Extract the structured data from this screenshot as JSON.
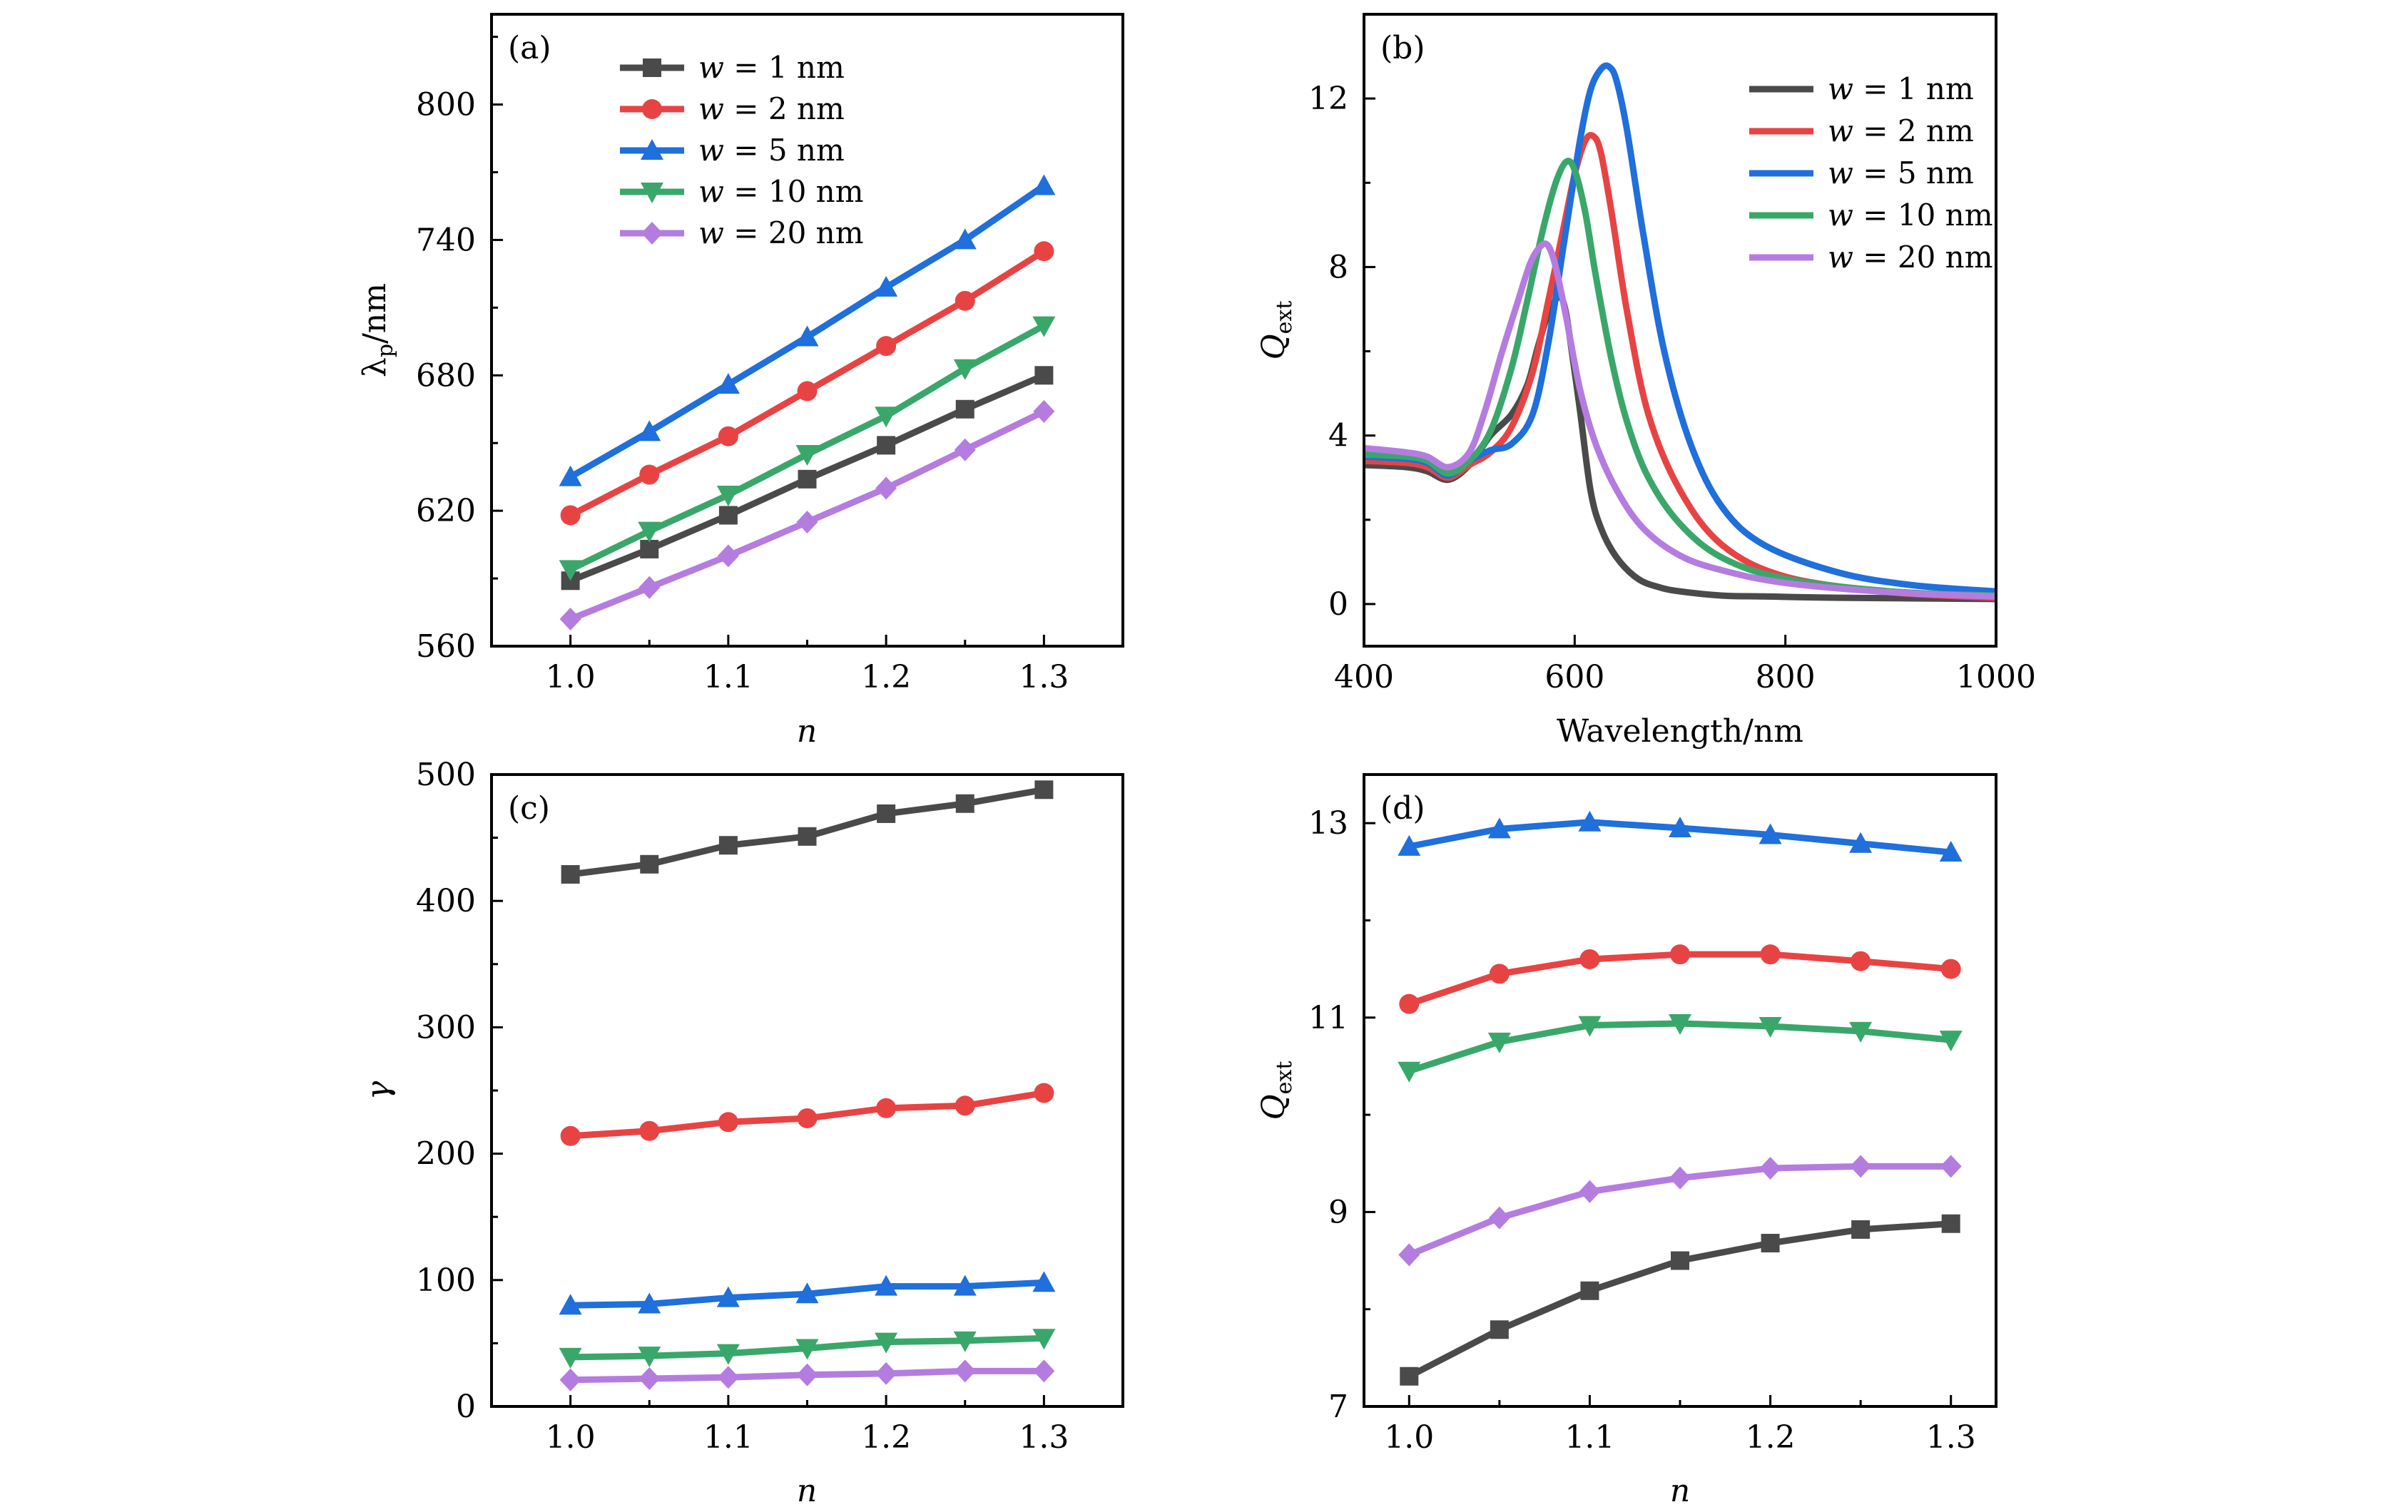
{
  "figure": {
    "series_colors": {
      "w1": "#4a4a4a",
      "w2": "#e84343",
      "w5": "#1f6fdc",
      "w10": "#3aa76a",
      "w20": "#b57ce0"
    }
  },
  "chart_data": [
    {
      "id": "a",
      "type": "line",
      "panel_label": "(a)",
      "xlabel": "n",
      "ylabel": "λp/nm",
      "xlim": [
        0.95,
        1.35
      ],
      "ylim": [
        560,
        840
      ],
      "xticks": [
        1.0,
        1.1,
        1.2,
        1.3
      ],
      "xtick_labels": [
        "1.0",
        "1.1",
        "1.2",
        "1.3"
      ],
      "xminor": [
        1.05,
        1.15,
        1.25
      ],
      "yticks": [
        560,
        620,
        680,
        740,
        800
      ],
      "ytick_labels": [
        "560",
        "620",
        "680",
        "740",
        "800"
      ],
      "yminor": [
        590,
        650,
        710,
        770,
        830
      ],
      "legend": "top-left",
      "markers": true,
      "x": [
        1.0,
        1.05,
        1.1,
        1.15,
        1.2,
        1.25,
        1.3
      ],
      "series": [
        {
          "key": "w1",
          "name": "w = 1 nm",
          "marker": "square",
          "values": [
            589,
            603,
            618,
            634,
            649,
            665,
            680
          ]
        },
        {
          "key": "w2",
          "name": "w = 2 nm",
          "marker": "circle",
          "values": [
            618,
            636,
            653,
            673,
            693,
            713,
            735
          ]
        },
        {
          "key": "w5",
          "name": "w = 5 nm",
          "marker": "triangle-up",
          "values": [
            635,
            655,
            676,
            697,
            719,
            740,
            764
          ]
        },
        {
          "key": "w10",
          "name": "w = 10 nm",
          "marker": "triangle-down",
          "values": [
            594,
            611,
            627,
            645,
            662,
            683,
            702
          ]
        },
        {
          "key": "w20",
          "name": "w = 20 nm",
          "marker": "diamond",
          "values": [
            572,
            586,
            600,
            615,
            630,
            647,
            664
          ]
        }
      ]
    },
    {
      "id": "b",
      "type": "line",
      "panel_label": "(b)",
      "xlabel": "Wavelength/nm",
      "ylabel": "Qext",
      "xlim": [
        400,
        1000
      ],
      "ylim": [
        -1,
        14
      ],
      "xticks": [
        400,
        600,
        800,
        1000
      ],
      "xtick_labels": [
        "400",
        "600",
        "800",
        "1000"
      ],
      "xminor": [],
      "yticks": [
        0,
        4,
        8,
        12
      ],
      "ytick_labels": [
        "0",
        "4",
        "8",
        "12"
      ],
      "yminor": [
        2,
        6,
        10
      ],
      "legend": "top-right",
      "markers": false,
      "series": [
        {
          "key": "w1",
          "name": "w = 1 nm",
          "x": [
            400,
            440,
            460,
            480,
            500,
            520,
            540,
            555,
            565,
            575,
            585,
            590,
            595,
            605,
            615,
            625,
            640,
            660,
            680,
            700,
            740,
            780,
            850,
            1000
          ],
          "values": [
            3.3,
            3.25,
            3.15,
            2.95,
            3.3,
            4.0,
            4.5,
            5.2,
            6.1,
            6.9,
            7.3,
            7.1,
            6.4,
            4.6,
            2.7,
            1.8,
            1.1,
            0.6,
            0.4,
            0.3,
            0.2,
            0.18,
            0.15,
            0.12
          ]
        },
        {
          "key": "w2",
          "name": "w = 2 nm",
          "x": [
            400,
            440,
            460,
            480,
            500,
            520,
            540,
            560,
            575,
            590,
            600,
            610,
            618,
            625,
            635,
            650,
            670,
            700,
            740,
            800,
            900,
            1000
          ],
          "values": [
            3.4,
            3.35,
            3.25,
            3.0,
            3.3,
            3.6,
            4.2,
            5.5,
            7.2,
            9.0,
            10.2,
            11.0,
            11.1,
            10.7,
            9.3,
            6.9,
            4.5,
            2.7,
            1.4,
            0.65,
            0.28,
            0.15
          ]
        },
        {
          "key": "w5",
          "name": "w = 5 nm",
          "x": [
            400,
            440,
            460,
            480,
            500,
            520,
            540,
            560,
            575,
            590,
            605,
            615,
            625,
            633,
            640,
            650,
            665,
            685,
            710,
            740,
            780,
            850,
            920,
            1000
          ],
          "values": [
            3.5,
            3.45,
            3.35,
            3.05,
            3.4,
            3.65,
            3.8,
            4.5,
            6.2,
            8.6,
            11.0,
            12.2,
            12.7,
            12.75,
            12.4,
            11.2,
            8.8,
            6.0,
            3.8,
            2.3,
            1.4,
            0.75,
            0.45,
            0.3
          ]
        },
        {
          "key": "w10",
          "name": "w = 10 nm",
          "x": [
            400,
            440,
            460,
            480,
            500,
            520,
            540,
            555,
            570,
            582,
            592,
            600,
            610,
            620,
            635,
            650,
            670,
            700,
            740,
            800,
            900,
            1000
          ],
          "values": [
            3.55,
            3.5,
            3.4,
            3.1,
            3.4,
            4.1,
            5.6,
            7.2,
            8.9,
            10.0,
            10.5,
            10.3,
            9.3,
            7.8,
            5.8,
            4.3,
            3.0,
            1.9,
            1.1,
            0.6,
            0.3,
            0.2
          ]
        },
        {
          "key": "w20",
          "name": "w = 20 nm",
          "x": [
            400,
            440,
            460,
            480,
            500,
            515,
            530,
            545,
            558,
            568,
            575,
            582,
            592,
            605,
            620,
            640,
            665,
            700,
            740,
            800,
            900,
            1000
          ],
          "values": [
            3.7,
            3.6,
            3.5,
            3.25,
            3.6,
            4.6,
            5.9,
            7.1,
            8.1,
            8.5,
            8.5,
            8.0,
            6.8,
            5.1,
            3.8,
            2.7,
            1.8,
            1.15,
            0.8,
            0.5,
            0.28,
            0.18
          ]
        }
      ]
    },
    {
      "id": "c",
      "type": "line",
      "panel_label": "(c)",
      "xlabel": "n",
      "ylabel": "γ",
      "xlim": [
        0.95,
        1.35
      ],
      "ylim": [
        0,
        500
      ],
      "xticks": [
        1.0,
        1.1,
        1.2,
        1.3
      ],
      "xtick_labels": [
        "1.0",
        "1.1",
        "1.2",
        "1.3"
      ],
      "xminor": [
        1.05,
        1.15,
        1.25
      ],
      "yticks": [
        0,
        100,
        200,
        300,
        400,
        500
      ],
      "ytick_labels": [
        "0",
        "100",
        "200",
        "300",
        "400",
        "500"
      ],
      "yminor": [
        50,
        150,
        250,
        350,
        450
      ],
      "legend": "none",
      "markers": true,
      "x": [
        1.0,
        1.05,
        1.1,
        1.15,
        1.2,
        1.25,
        1.3
      ],
      "series": [
        {
          "key": "w1",
          "name": "w = 1 nm",
          "marker": "square",
          "values": [
            421,
            429,
            444,
            451,
            469,
            477,
            488
          ]
        },
        {
          "key": "w2",
          "name": "w = 2 nm",
          "marker": "circle",
          "values": [
            214,
            218,
            225,
            228,
            236,
            238,
            248
          ]
        },
        {
          "key": "w5",
          "name": "w = 5 nm",
          "marker": "triangle-up",
          "values": [
            80,
            81,
            86,
            89,
            95,
            95,
            98
          ]
        },
        {
          "key": "w10",
          "name": "w = 10 nm",
          "marker": "triangle-down",
          "values": [
            39,
            40,
            42,
            46,
            51,
            52,
            54
          ]
        },
        {
          "key": "w20",
          "name": "w = 20 nm",
          "marker": "diamond",
          "values": [
            21,
            22,
            23,
            25,
            26,
            28,
            28
          ]
        }
      ]
    },
    {
      "id": "d",
      "type": "line",
      "panel_label": "(d)",
      "xlabel": "n",
      "ylabel": "Qext",
      "xlim": [
        0.975,
        1.325
      ],
      "ylim": [
        7,
        13.5
      ],
      "xticks": [
        1.0,
        1.1,
        1.2,
        1.3
      ],
      "xtick_labels": [
        "1.0",
        "1.1",
        "1.2",
        "1.3"
      ],
      "xminor": [
        1.05,
        1.15,
        1.25
      ],
      "yticks": [
        7,
        9,
        11,
        13
      ],
      "ytick_labels": [
        "7",
        "9",
        "11",
        "13"
      ],
      "yminor": [
        8,
        10,
        12
      ],
      "legend": "none",
      "markers": true,
      "x": [
        1.0,
        1.05,
        1.1,
        1.15,
        1.2,
        1.25,
        1.3
      ],
      "series": [
        {
          "key": "w1",
          "name": "w = 1 nm",
          "marker": "square",
          "values": [
            7.31,
            7.79,
            8.19,
            8.5,
            8.68,
            8.82,
            8.88
          ]
        },
        {
          "key": "w2",
          "name": "w = 2 nm",
          "marker": "circle",
          "values": [
            11.14,
            11.45,
            11.6,
            11.65,
            11.65,
            11.58,
            11.5
          ]
        },
        {
          "key": "w5",
          "name": "w = 5 nm",
          "marker": "triangle-up",
          "values": [
            12.76,
            12.94,
            13.01,
            12.95,
            12.88,
            12.79,
            12.7
          ]
        },
        {
          "key": "w10",
          "name": "w = 10 nm",
          "marker": "triangle-down",
          "values": [
            10.45,
            10.75,
            10.92,
            10.94,
            10.91,
            10.86,
            10.77
          ]
        },
        {
          "key": "w20",
          "name": "w = 20 nm",
          "marker": "diamond",
          "values": [
            8.56,
            8.94,
            9.21,
            9.35,
            9.45,
            9.47,
            9.47
          ]
        }
      ]
    }
  ]
}
